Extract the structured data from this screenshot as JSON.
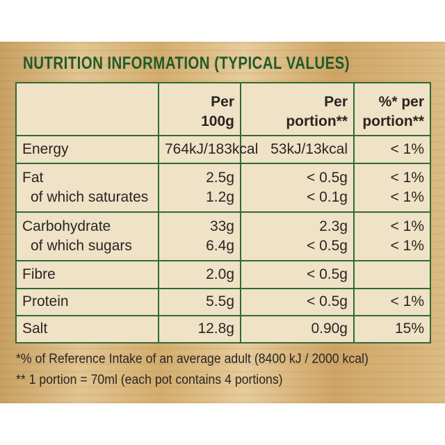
{
  "title": "NUTRITION INFORMATION (TYPICAL VALUES)",
  "headers": {
    "col1": [
      "Per",
      "100g"
    ],
    "col2": [
      "Per",
      "portion**"
    ],
    "col3": [
      "%* per",
      "portion**"
    ]
  },
  "rows": [
    {
      "labels": [
        "Energy"
      ],
      "per100g": [
        "764kJ/183kcal"
      ],
      "perPortion": [
        "53kJ/13kcal"
      ],
      "ri": [
        "< 1%"
      ]
    },
    {
      "labels": [
        "Fat",
        "of which saturates"
      ],
      "per100g": [
        "2.5g",
        "1.2g"
      ],
      "perPortion": [
        "< 0.5g",
        "< 0.1g"
      ],
      "ri": [
        "< 1%",
        "< 1%"
      ]
    },
    {
      "labels": [
        "Carbohydrate",
        "of which sugars"
      ],
      "per100g": [
        "33g",
        "6.4g"
      ],
      "perPortion": [
        "2.3g",
        "< 0.5g"
      ],
      "ri": [
        "< 1%",
        "< 1%"
      ]
    },
    {
      "labels": [
        "Fibre"
      ],
      "per100g": [
        "2.0g"
      ],
      "perPortion": [
        "< 0.5g"
      ],
      "ri": [
        ""
      ]
    },
    {
      "labels": [
        "Protein"
      ],
      "per100g": [
        "5.5g"
      ],
      "perPortion": [
        "< 0.5g"
      ],
      "ri": [
        "< 1%"
      ]
    },
    {
      "labels": [
        "Salt"
      ],
      "per100g": [
        "12.8g"
      ],
      "perPortion": [
        "0.90g"
      ],
      "ri": [
        "15%"
      ]
    }
  ],
  "footnotes": [
    "*% of Reference Intake of an average adult (8400 kJ / 2000 kcal)",
    "** 1 portion = 70ml (each pot contains 4 portions)"
  ],
  "colors": {
    "green": "#2f6b33",
    "title_green": "#1f5a2c",
    "card": "#efe2c6"
  }
}
